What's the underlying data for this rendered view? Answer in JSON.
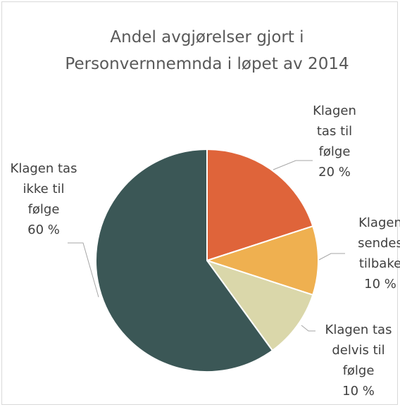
{
  "chart_data": {
    "type": "pie",
    "title": "Andel avgjørelser gjort i Personvernnemnda i løpet av 2014",
    "categories": [
      "Klagen tas til følge",
      "Klagen sendes tilbake",
      "Klagen tas delvis til følge",
      "Klagen tas ikke til følge"
    ],
    "values": [
      20,
      10,
      10,
      60
    ],
    "value_labels": [
      "20 %",
      "10 %",
      "10 %",
      "60 %"
    ],
    "colors": [
      "#df643a",
      "#efb050",
      "#dad7aa",
      "#3b5756"
    ]
  }
}
